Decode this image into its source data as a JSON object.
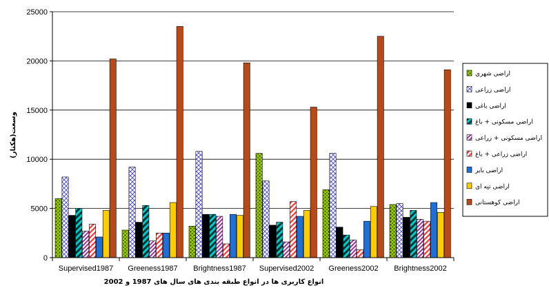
{
  "chart_data": {
    "type": "bar",
    "title": "",
    "xlabel": "انواع کاربری ها در انواع طبقه بندی های سال های 1987 و 2002",
    "ylabel": "وسعت(هکتار)",
    "ylim": [
      0,
      25000
    ],
    "yticks": [
      "0",
      "5000",
      "10000",
      "15000",
      "20000",
      "25000"
    ],
    "grid": "horizontal",
    "legend_position": "right",
    "categories": [
      "Supervised1987",
      "Greeness1987",
      "Brightness1987",
      "Supervised2002",
      "Greeness2002",
      "Brightness2002"
    ],
    "series": [
      {
        "name": "اراضی شهری",
        "color": "#99cc00",
        "pattern": "dots",
        "values": [
          6000,
          2800,
          3200,
          10600,
          6900,
          5400
        ]
      },
      {
        "name": "اراضی زراعی",
        "color": "#ccccff",
        "pattern": "diamond",
        "values": [
          8200,
          9200,
          10800,
          7800,
          10600,
          5500
        ]
      },
      {
        "name": "اراضی باغی",
        "color": "#000000",
        "pattern": "solid",
        "values": [
          4300,
          3600,
          4400,
          3300,
          3100,
          4100
        ]
      },
      {
        "name": "اراضی مسکونی + باغ",
        "color": "#00cccc",
        "pattern": "diagonal-dark",
        "values": [
          5000,
          5300,
          4400,
          3600,
          2300,
          4800
        ]
      },
      {
        "name": "اراضی مسکونی + زراعی",
        "color": "#cc99ff",
        "pattern": "diagonal-purple",
        "values": [
          2700,
          1700,
          4200,
          1600,
          1800,
          3900
        ]
      },
      {
        "name": "اراضی زراعی + باغ",
        "color": "#ff6666",
        "pattern": "diagonal-red",
        "values": [
          3400,
          2500,
          1400,
          5700,
          800,
          3700
        ]
      },
      {
        "name": "اراضی بایر",
        "color": "#1f6fd6",
        "pattern": "solid",
        "values": [
          2100,
          2500,
          4400,
          4200,
          3700,
          5600
        ]
      },
      {
        "name": "اراضی تپه ای",
        "color": "#ffcc00",
        "pattern": "solid",
        "values": [
          4800,
          5600,
          4300,
          4800,
          5200,
          4600
        ]
      },
      {
        "name": "اراضی کوهستانی",
        "color": "#b84a1a",
        "pattern": "solid",
        "values": [
          20200,
          23500,
          19800,
          15300,
          22500,
          19100
        ]
      }
    ]
  }
}
